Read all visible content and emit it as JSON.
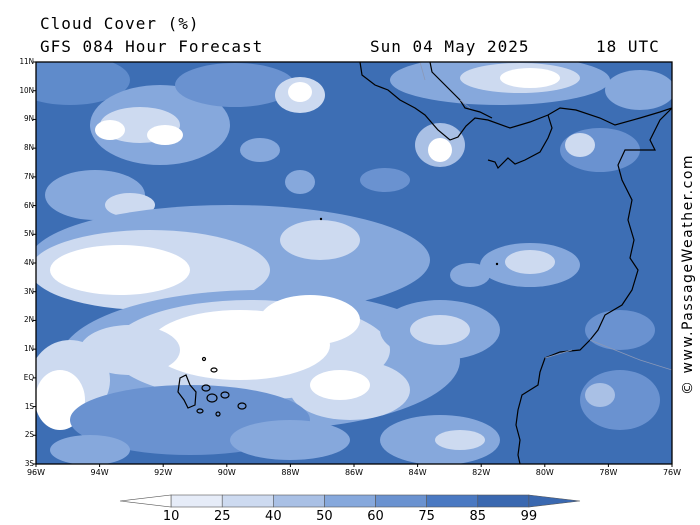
{
  "header": {
    "title": "Cloud Cover (%)",
    "model": "GFS 084 Hour Forecast",
    "date": "Sun 04 May 2025",
    "time": "18 UTC"
  },
  "credit": "© www.PassageWeather.com",
  "map": {
    "lat_labels": [
      "11N",
      "10N",
      "9N",
      "8N",
      "7N",
      "6N",
      "5N",
      "4N",
      "3N",
      "2N",
      "1N",
      "EQ",
      "1S",
      "2S",
      "3S"
    ],
    "lon_labels": [
      "96W",
      "94W",
      "92W",
      "90W",
      "88W",
      "86W",
      "84W",
      "82W",
      "80W",
      "78W",
      "76W"
    ],
    "lon_range": [
      -96,
      -76
    ],
    "lat_range": [
      -3,
      11
    ]
  },
  "colorbar": {
    "levels": [
      "10",
      "25",
      "40",
      "50",
      "60",
      "75",
      "85",
      "99"
    ],
    "colors": [
      "#ffffff",
      "#e6ecf8",
      "#cddaf0",
      "#a9c0e5",
      "#86a8dc",
      "#6a92d0",
      "#4a79c2",
      "#3a68b0"
    ]
  }
}
